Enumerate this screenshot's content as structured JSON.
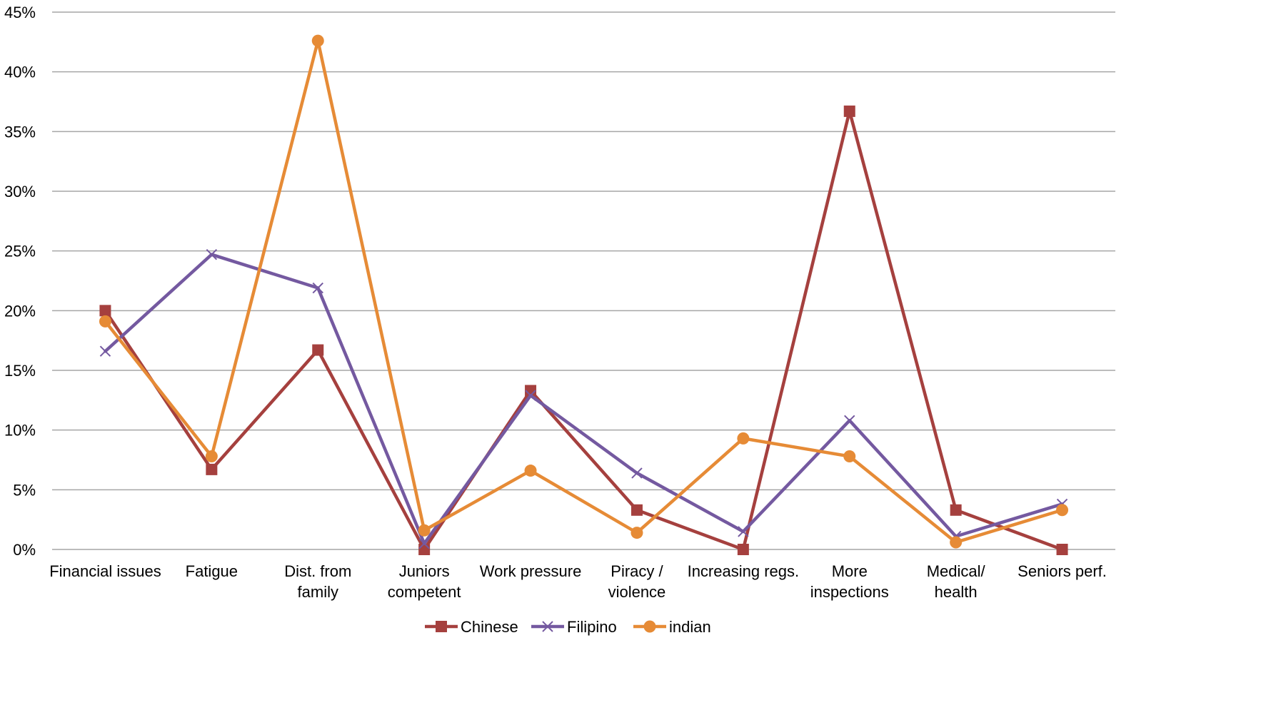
{
  "chart_data": {
    "type": "line",
    "title": "",
    "xlabel": "",
    "ylabel": "",
    "ylim": [
      0,
      45
    ],
    "y_ticks": [
      "0%",
      "5%",
      "10%",
      "15%",
      "20%",
      "25%",
      "30%",
      "35%",
      "40%",
      "45%"
    ],
    "y_tick_values": [
      0,
      5,
      10,
      15,
      20,
      25,
      30,
      35,
      40,
      45
    ],
    "grid": "horizontal",
    "legend_position": "bottom",
    "categories": [
      [
        "Financial issues"
      ],
      [
        "Fatigue"
      ],
      [
        "Dist. from",
        "family"
      ],
      [
        "Juniors",
        "competent"
      ],
      [
        "Work pressure"
      ],
      [
        "Piracy /",
        "violence"
      ],
      [
        "Increasing regs."
      ],
      [
        "More",
        "inspections"
      ],
      [
        "Medical/",
        "health"
      ],
      [
        "Seniors perf."
      ]
    ],
    "series": [
      {
        "name": "Chinese",
        "color": "#A5403E",
        "marker": "square",
        "values": [
          20.0,
          6.7,
          16.7,
          0.0,
          13.3,
          3.3,
          0.0,
          36.7,
          3.3,
          0.0
        ]
      },
      {
        "name": "Filipino",
        "color": "#7459A0",
        "marker": "x",
        "values": [
          16.6,
          24.7,
          21.9,
          0.5,
          12.9,
          6.4,
          1.5,
          10.8,
          1.1,
          3.8
        ]
      },
      {
        "name": "indian",
        "color": "#E68B36",
        "marker": "circle",
        "values": [
          19.1,
          7.8,
          42.6,
          1.6,
          6.6,
          1.4,
          9.3,
          7.8,
          0.6,
          3.3
        ]
      }
    ]
  }
}
